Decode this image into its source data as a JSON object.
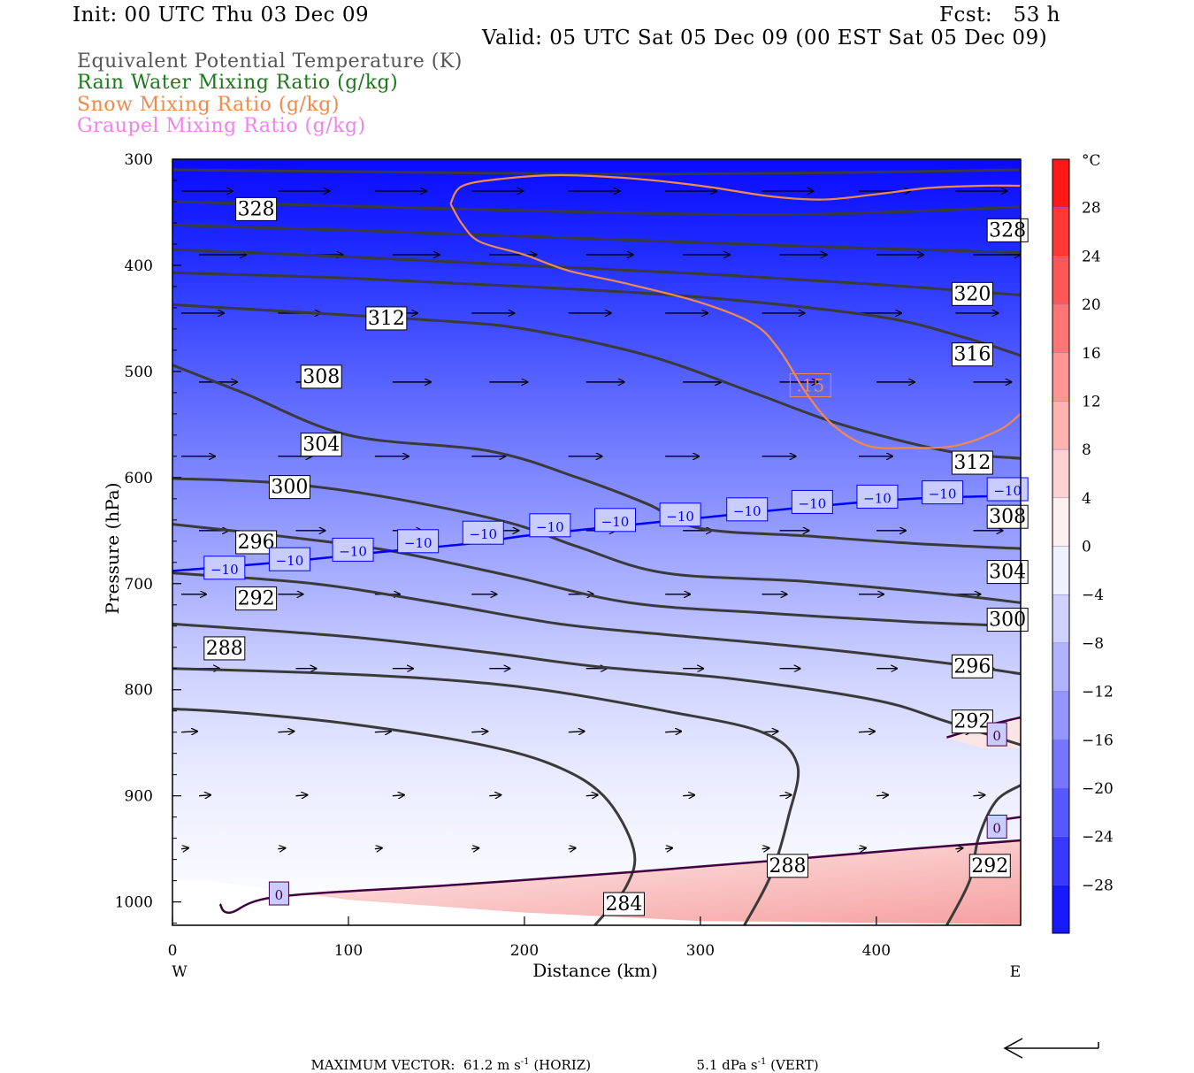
{
  "header": {
    "init": "Init: 00 UTC Thu 03 Dec 09",
    "fcst": "Fcst:   53 h",
    "valid": "Valid: 05 UTC Sat 05 Dec 09 (00 EST Sat 05 Dec 09)"
  },
  "legend": [
    {
      "label": "Equivalent Potential Temperature (K)",
      "color": "#555555"
    },
    {
      "label": "Rain Water Mixing Ratio (g/kg)",
      "color": "#1a7a1a"
    },
    {
      "label": "Snow Mixing Ratio (g/kg)",
      "color": "#f08a4b"
    },
    {
      "label": "Graupel Mixing Ratio (g/kg)",
      "color": "#ee82ee"
    }
  ],
  "footer": {
    "max_label": "MAXIMUM VECTOR:",
    "horiz": "61.2 m s",
    "horiz_unit": "(HORIZ)",
    "vert": "5.1 dPa s",
    "vert_unit": "(VERT)",
    "exp": "-1"
  },
  "chart_data": {
    "type": "cross-section",
    "xlabel": "Distance (km)",
    "ylabel": "Pressure (hPa)",
    "xlim": [
      0,
      482
    ],
    "ylim": [
      1022,
      300
    ],
    "x_ticks": [
      0,
      100,
      200,
      300,
      400
    ],
    "y_ticks": [
      300,
      400,
      500,
      600,
      700,
      800,
      900,
      1000
    ],
    "x_end_labels": {
      "left": "W",
      "right": "E"
    },
    "colorbar": {
      "unit": "°C",
      "ticks": [
        28,
        24,
        20,
        16,
        12,
        8,
        4,
        0,
        -4,
        -8,
        -12,
        -16,
        -20,
        -24,
        -28
      ],
      "tick_labels": [
        "28",
        "24",
        "20",
        "16",
        "12",
        "8",
        "4",
        "0",
        "−4",
        "−8",
        "−12",
        "−16",
        "−20",
        "−24",
        "−28"
      ],
      "range": [
        -32,
        32
      ],
      "cold_color": "#0000ff",
      "warm_color": "#ff0000"
    },
    "theta_e_contours": [
      {
        "level": 284,
        "label": "284",
        "points": [
          [
            240,
            1022
          ],
          [
            258,
            985
          ],
          [
            262,
            950
          ],
          [
            245,
            900
          ],
          [
            215,
            870
          ],
          [
            170,
            850
          ],
          [
            100,
            832
          ],
          [
            40,
            822
          ],
          [
            0,
            818
          ]
        ],
        "label_at": [
          246,
          1002
        ]
      },
      {
        "level": 288,
        "label": "288",
        "points": [
          [
            325,
            1022
          ],
          [
            340,
            975
          ],
          [
            350,
            920
          ],
          [
            355,
            870
          ],
          [
            335,
            840
          ],
          [
            280,
            820
          ],
          [
            210,
            800
          ],
          [
            150,
            790
          ],
          [
            80,
            784
          ],
          [
            0,
            780
          ]
        ],
        "label_at": [
          339,
          966
        ],
        "label2": "288",
        "label2_at": [
          19,
          761
        ]
      },
      {
        "level": 292,
        "label": "292",
        "points": [
          [
            440,
            1022
          ],
          [
            453,
            980
          ],
          [
            458,
            940
          ],
          [
            468,
            905
          ],
          [
            482,
            890
          ]
        ],
        "label_at": [
          454,
          966
        ],
        "label2": "292",
        "label2_at": [
          37,
          714
        ]
      },
      {
        "level": 292.1,
        "label": "292",
        "points": [
          [
            0,
            738
          ],
          [
            100,
            750
          ],
          [
            180,
            765
          ],
          [
            240,
            778
          ],
          [
            320,
            790
          ],
          [
            400,
            810
          ],
          [
            440,
            830
          ],
          [
            482,
            852
          ]
        ],
        "label_at": [
          444,
          830
        ]
      },
      {
        "level": 296,
        "label": "296",
        "points": [
          [
            0,
            690
          ],
          [
            80,
            700
          ],
          [
            150,
            718
          ],
          [
            220,
            738
          ],
          [
            280,
            748
          ],
          [
            360,
            760
          ],
          [
            440,
            775
          ],
          [
            482,
            785
          ]
        ],
        "label_at": [
          444,
          778
        ],
        "label2": "296",
        "label2_at": [
          37,
          661
        ]
      },
      {
        "level": 300,
        "label": "300",
        "points": [
          [
            0,
            644
          ],
          [
            60,
            655
          ],
          [
            120,
            668
          ],
          [
            190,
            692
          ],
          [
            260,
            718
          ],
          [
            340,
            728
          ],
          [
            420,
            736
          ],
          [
            482,
            740
          ]
        ],
        "label_at": [
          464,
          734
        ],
        "label2": "300",
        "label2_at": [
          56,
          609
        ]
      },
      {
        "level": 304,
        "label": "304",
        "points": [
          [
            0,
            601
          ],
          [
            60,
            605
          ],
          [
            120,
            618
          ],
          [
            190,
            642
          ],
          [
            230,
            665
          ],
          [
            280,
            690
          ],
          [
            360,
            698
          ],
          [
            440,
            710
          ],
          [
            482,
            718
          ]
        ],
        "label_at": [
          464,
          689
        ],
        "label2": "304",
        "label2_at": [
          74,
          569
        ]
      },
      {
        "level": 308,
        "label": "308",
        "points": [
          [
            0,
            494
          ],
          [
            40,
            520
          ],
          [
            100,
            560
          ],
          [
            180,
            575
          ],
          [
            230,
            600
          ],
          [
            270,
            625
          ],
          [
            300,
            648
          ],
          [
            360,
            655
          ],
          [
            420,
            662
          ],
          [
            482,
            667
          ]
        ],
        "label_at": [
          464,
          637
        ],
        "label2": "308",
        "label2_at": [
          74,
          505
        ]
      },
      {
        "level": 312,
        "label": "312",
        "points": [
          [
            0,
            437
          ],
          [
            80,
            445
          ],
          [
            150,
            452
          ],
          [
            200,
            460
          ],
          [
            270,
            485
          ],
          [
            330,
            520
          ],
          [
            380,
            550
          ],
          [
            440,
            575
          ],
          [
            482,
            582
          ]
        ],
        "label_at": [
          444,
          586
        ],
        "label2": "312",
        "label2_at": [
          111,
          450
        ]
      },
      {
        "level": 316,
        "label": "316",
        "points": [
          [
            0,
            407
          ],
          [
            100,
            412
          ],
          [
            200,
            420
          ],
          [
            300,
            430
          ],
          [
            400,
            448
          ],
          [
            450,
            468
          ],
          [
            482,
            485
          ]
        ],
        "label_at": [
          444,
          484
        ]
      },
      {
        "level": 320,
        "label": "320",
        "points": [
          [
            0,
            385
          ],
          [
            100,
            392
          ],
          [
            200,
            400
          ],
          [
            300,
            408
          ],
          [
            400,
            418
          ],
          [
            482,
            428
          ]
        ],
        "label_at": [
          444,
          427
        ]
      },
      {
        "level": 324,
        "label": "",
        "points": [
          [
            0,
            362
          ],
          [
            120,
            368
          ],
          [
            240,
            375
          ],
          [
            360,
            382
          ],
          [
            482,
            388
          ]
        ],
        "label_at": null
      },
      {
        "level": 328,
        "label": "328",
        "points": [
          [
            0,
            340
          ],
          [
            120,
            345
          ],
          [
            240,
            350
          ],
          [
            360,
            352
          ],
          [
            482,
            345
          ]
        ],
        "label_at": [
          464,
          367
        ],
        "label2": "328",
        "label2_at": [
          37,
          347
        ]
      },
      {
        "level": 332,
        "label": "",
        "points": [
          [
            0,
            310
          ],
          [
            120,
            312
          ],
          [
            240,
            314
          ],
          [
            360,
            313
          ],
          [
            482,
            310
          ]
        ],
        "label_at": null
      }
    ],
    "isotherms": [
      {
        "level": -10,
        "label": "−10",
        "color": "#0000ff",
        "points": [
          [
            0,
            688
          ],
          [
            60,
            680
          ],
          [
            120,
            670
          ],
          [
            170,
            662
          ],
          [
            200,
            655
          ],
          [
            240,
            648
          ],
          [
            300,
            638
          ],
          [
            360,
            628
          ],
          [
            420,
            620
          ],
          [
            482,
            617
          ]
        ],
        "labels_at": [
          [
            19,
            685
          ],
          [
            56,
            677
          ],
          [
            92,
            668
          ],
          [
            129,
            660
          ],
          [
            166,
            652
          ],
          [
            204,
            645
          ],
          [
            241,
            640
          ],
          [
            278,
            635
          ],
          [
            316,
            630
          ],
          [
            353,
            623
          ],
          [
            390,
            618
          ],
          [
            427,
            614
          ],
          [
            464,
            611
          ]
        ]
      },
      {
        "level": 0,
        "label": "0",
        "color": "#400040",
        "points": [
          [
            27,
            1002
          ],
          [
            33,
            1010
          ],
          [
            60,
            995
          ],
          [
            160,
            984
          ],
          [
            260,
            972
          ],
          [
            350,
            960
          ],
          [
            420,
            950
          ],
          [
            482,
            942
          ]
        ],
        "labels_at": [
          [
            56,
            992
          ]
        ]
      },
      {
        "level": 0.1,
        "label": "0",
        "color": "#400040",
        "points": [
          [
            440,
            845
          ],
          [
            460,
            835
          ],
          [
            482,
            826
          ]
        ],
        "labels_at": [
          [
            464,
            842
          ]
        ]
      },
      {
        "level": 0.2,
        "label": "0",
        "color": "#400040",
        "points": [
          [
            482,
            920
          ],
          [
            464,
            924
          ]
        ],
        "labels_at": [
          [
            464,
            929
          ]
        ]
      }
    ],
    "snow_contour": {
      "level": 0.15,
      "label": ".15",
      "color": "#f08a4b",
      "points": [
        [
          158,
          342
        ],
        [
          165,
          325
        ],
        [
          190,
          318
        ],
        [
          220,
          315
        ],
        [
          260,
          318
        ],
        [
          300,
          325
        ],
        [
          340,
          335
        ],
        [
          370,
          338
        ],
        [
          400,
          333
        ],
        [
          430,
          327
        ],
        [
          460,
          325
        ],
        [
          482,
          325
        ]
      ],
      "points2": [
        [
          158,
          342
        ],
        [
          165,
          362
        ],
        [
          175,
          378
        ],
        [
          200,
          390
        ],
        [
          225,
          405
        ],
        [
          260,
          418
        ],
        [
          300,
          435
        ],
        [
          330,
          455
        ],
        [
          345,
          480
        ],
        [
          360,
          520
        ],
        [
          375,
          550
        ],
        [
          395,
          570
        ],
        [
          418,
          572
        ],
        [
          445,
          570
        ],
        [
          470,
          555
        ],
        [
          482,
          540
        ]
      ],
      "label_at": [
        352,
        513
      ]
    },
    "wind_vectors": {
      "x": [
        0,
        55,
        110,
        165,
        220,
        275,
        330,
        385,
        440
      ],
      "p": [
        330,
        390,
        445,
        510,
        580,
        650,
        710,
        780,
        840,
        900,
        950
      ],
      "note": "horizontal winds westerly, decreasing with height toward surface"
    }
  }
}
